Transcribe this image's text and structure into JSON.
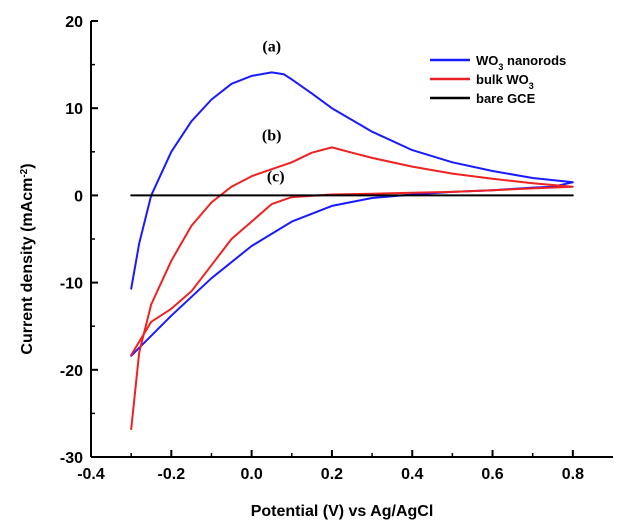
{
  "chart_data": {
    "type": "line",
    "title": "",
    "xlabel": "Potential (V) vs Ag/AgCl",
    "ylabel_parts": [
      "Current density (mAcm",
      "-2",
      ")"
    ],
    "xlim": [
      -0.4,
      0.9
    ],
    "ylim": [
      -30,
      20
    ],
    "xticks": [
      -0.4,
      -0.2,
      0.0,
      0.2,
      0.4,
      0.6,
      0.8
    ],
    "xtick_labels": [
      "-0.4",
      "-0.2",
      "0.0",
      "0.2",
      "0.4",
      "0.6",
      "0.8"
    ],
    "yticks": [
      -30,
      -20,
      -10,
      0,
      10,
      20
    ],
    "ytick_labels": [
      "-30",
      "-20",
      "-10",
      "0",
      "10",
      "20"
    ],
    "grid": false,
    "legend_position": "top-right",
    "series": [
      {
        "name_parts": [
          "WO",
          "3",
          " nanorods"
        ],
        "color": "#1a1aff",
        "x": [
          -0.3,
          -0.28,
          -0.25,
          -0.2,
          -0.15,
          -0.1,
          -0.05,
          0.0,
          0.05,
          0.08,
          0.1,
          0.15,
          0.2,
          0.3,
          0.4,
          0.5,
          0.6,
          0.7,
          0.78,
          0.8,
          0.75,
          0.7,
          0.6,
          0.5,
          0.4,
          0.3,
          0.2,
          0.1,
          0.0,
          -0.1,
          -0.2,
          -0.3
        ],
        "y": [
          -10.7,
          -5.5,
          0.0,
          5.0,
          8.5,
          11.0,
          12.8,
          13.7,
          14.1,
          13.9,
          13.3,
          11.7,
          10.0,
          7.3,
          5.2,
          3.8,
          2.8,
          2.0,
          1.6,
          1.5,
          1.0,
          0.9,
          0.6,
          0.4,
          0.1,
          -0.3,
          -1.2,
          -3.0,
          -5.8,
          -9.5,
          -13.8,
          -18.4
        ]
      },
      {
        "name_parts": [
          "bulk WO",
          "3"
        ],
        "color": "#ee2222",
        "x": [
          -0.3,
          -0.28,
          -0.25,
          -0.2,
          -0.15,
          -0.1,
          -0.05,
          0.0,
          0.05,
          0.1,
          0.15,
          0.2,
          0.25,
          0.3,
          0.4,
          0.5,
          0.6,
          0.7,
          0.8,
          0.7,
          0.6,
          0.5,
          0.4,
          0.3,
          0.2,
          0.1,
          0.05,
          0.0,
          -0.05,
          -0.1,
          -0.15,
          -0.2,
          -0.25,
          -0.3
        ],
        "y": [
          -26.8,
          -18.0,
          -12.5,
          -7.5,
          -3.5,
          -0.8,
          1.0,
          2.2,
          3.0,
          3.8,
          4.9,
          5.5,
          4.9,
          4.3,
          3.3,
          2.5,
          1.9,
          1.4,
          1.0,
          0.8,
          0.6,
          0.4,
          0.3,
          0.2,
          0.1,
          -0.2,
          -1.0,
          -3.0,
          -5.0,
          -8.0,
          -11.0,
          -13.0,
          -14.5,
          -18.3
        ]
      },
      {
        "name_parts": [
          "bare GCE"
        ],
        "color": "#000000",
        "x": [
          -0.3,
          0.0,
          0.4,
          0.8
        ],
        "y": [
          0.0,
          0.0,
          0.0,
          0.0
        ]
      }
    ],
    "annotations": [
      {
        "text": "(a)",
        "x": 0.05,
        "y": 16.5
      },
      {
        "text": "(b)",
        "x": 0.05,
        "y": 6.3
      },
      {
        "text": "(c)",
        "x": 0.06,
        "y": 1.6
      }
    ]
  }
}
